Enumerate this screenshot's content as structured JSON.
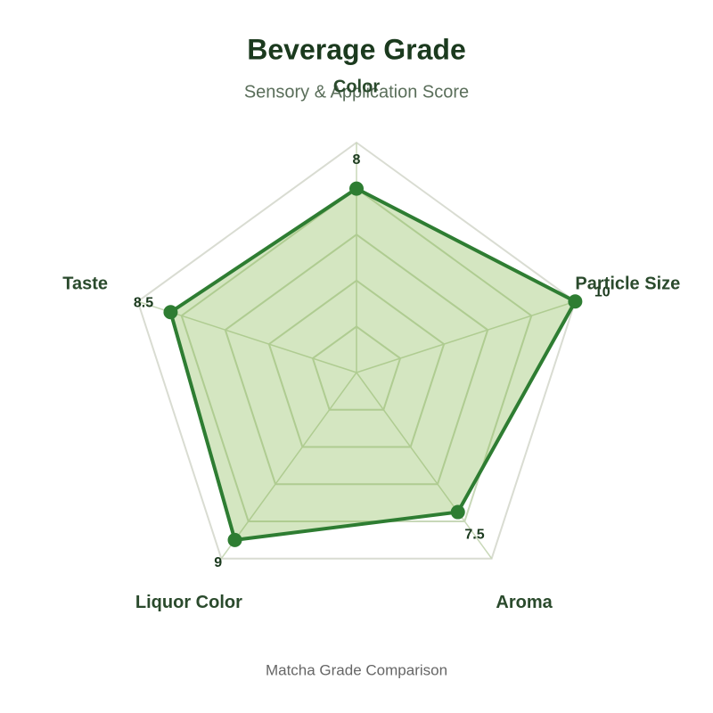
{
  "chart_data": {
    "type": "radar",
    "title": "Beverage Grade",
    "subtitle": "Sensory & Application Score",
    "footer": "Matcha Grade Comparison",
    "categories": [
      "Color",
      "Particle Size",
      "Aroma",
      "Liquor Color",
      "Taste"
    ],
    "values": [
      8,
      10,
      7.5,
      9,
      8.5
    ],
    "color": "#2e7d32",
    "fill": "#7cb342",
    "rlim": [
      0,
      10
    ],
    "rticks": [
      2,
      4,
      6,
      8,
      10
    ],
    "grid": true
  }
}
